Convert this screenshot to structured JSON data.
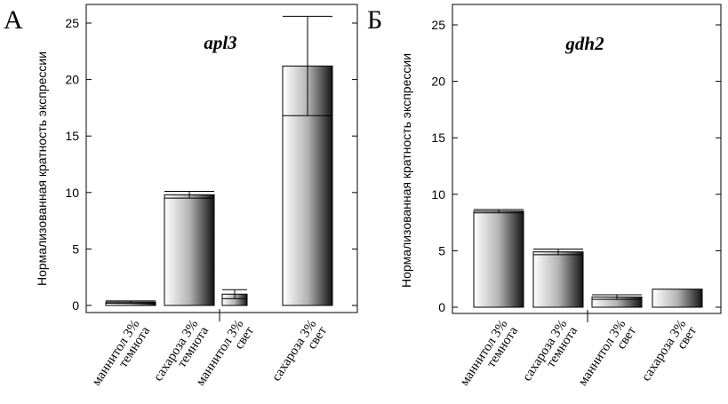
{
  "chart_data": [
    {
      "type": "bar",
      "panel": "А",
      "gene": "apl3",
      "ylabel": "Нормализованная кратность экспрессии",
      "ylim": [
        0,
        27
      ],
      "yticks": [
        0,
        5,
        10,
        15,
        20,
        25
      ],
      "categories": [
        [
          "маннитол 3%",
          "темнота"
        ],
        [
          "сахароза 3%",
          "темнота"
        ],
        [
          "маннитол 3%",
          "свет"
        ],
        [
          "сахароза 3%",
          "свет"
        ]
      ],
      "values": [
        0.3,
        9.8,
        1.0,
        21.2
      ],
      "errors": [
        0.1,
        0.3,
        0.4,
        4.4
      ]
    },
    {
      "type": "bar",
      "panel": "Б",
      "gene": "gdh2",
      "ylabel": "Нормализованная кратность экспрессии",
      "ylim": [
        0,
        27
      ],
      "yticks": [
        0,
        5,
        10,
        15,
        20,
        25
      ],
      "categories": [
        [
          "маннитол 3%",
          "темнота"
        ],
        [
          "сахароза 3%",
          "темнота"
        ],
        [
          "маннитол 3%",
          "свет"
        ],
        [
          "сахароза 3%",
          "свет"
        ]
      ],
      "values": [
        8.5,
        4.9,
        0.9,
        1.6
      ],
      "errors": [
        0.15,
        0.25,
        0.2,
        0.0
      ]
    }
  ]
}
